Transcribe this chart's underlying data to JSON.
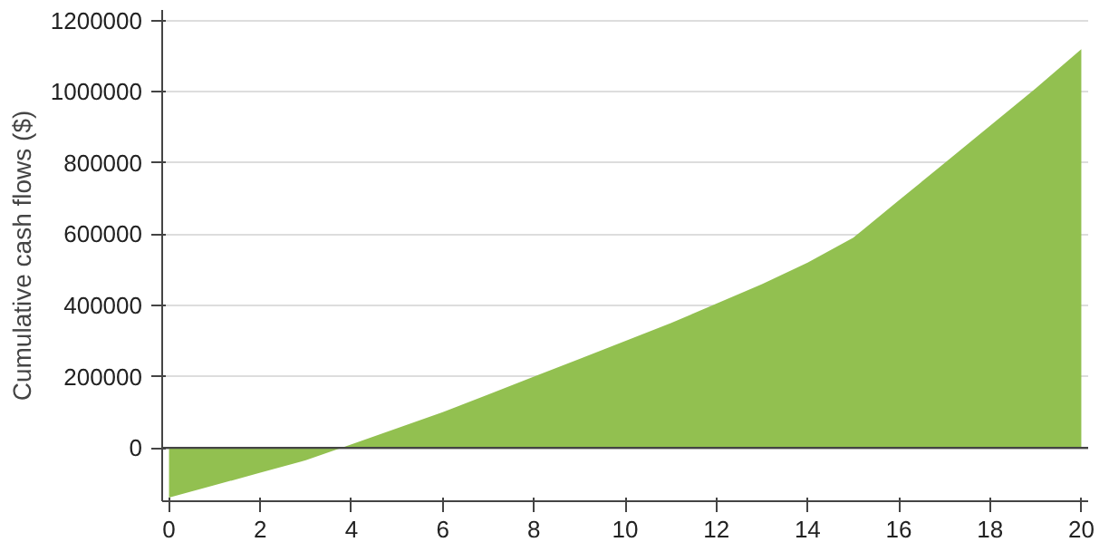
{
  "chart_data": {
    "type": "area",
    "ylabel": "Cumulative cash flows ($)",
    "x": [
      0,
      1,
      2,
      3,
      4,
      5,
      6,
      7,
      8,
      9,
      10,
      11,
      12,
      13,
      14,
      15,
      16,
      17,
      18,
      19,
      20
    ],
    "series": [
      {
        "color": "#92c050",
        "values": [
          -140000,
          -105000,
          -70000,
          -35000,
          10000,
          55000,
          100000,
          150000,
          200000,
          250000,
          300000,
          350000,
          405000,
          460000,
          520000,
          590000,
          695000,
          800000,
          905000,
          1010000,
          1120000
        ]
      }
    ],
    "xlim": [
      -0.15,
      20.15
    ],
    "xticks": [
      0,
      2,
      4,
      6,
      8,
      10,
      12,
      14,
      16,
      18,
      20
    ],
    "ylim": [
      -150000,
      1230000
    ],
    "yticks": [
      0,
      200000,
      400000,
      600000,
      800000,
      1000000,
      1200000
    ],
    "grid": "y",
    "ref_lines": [
      {
        "axis": "y",
        "value": 0,
        "color": "#444444"
      }
    ]
  }
}
